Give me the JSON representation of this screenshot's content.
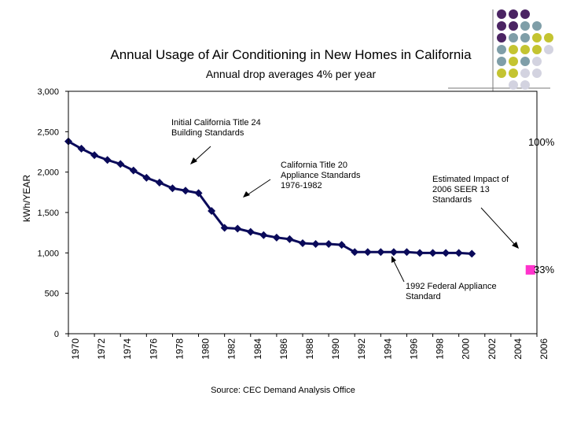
{
  "title": "Annual Usage of Air Conditioning in New Homes in California",
  "subtitle": "Annual drop averages 4% per year",
  "source": "Source: CEC Demand Analysis Office",
  "annotations": {
    "title24": "Initial California Title 24\nBuilding Standards",
    "title20": "California Title 20\nAppliance Standards\n1976-1982",
    "seer": "Estimated Impact of\n2006 SEER 13\nStandards",
    "federal": "1992 Federal Appliance\nStandard",
    "pct100": "100%",
    "pct33": "33%"
  },
  "colors": {
    "series": "#0a0a5a",
    "marker33": "#ff33cc",
    "deco_purple": "#4b2463",
    "deco_teal": "#7f9ea8",
    "deco_olive": "#c4c431",
    "deco_lavender": "#d3d3e0"
  },
  "chart_data": {
    "type": "line",
    "ylabel": "kWh/YEAR",
    "xlabel": "",
    "ylim": [
      0,
      3000
    ],
    "yticks": [
      "0",
      "500",
      "1,000",
      "1,500",
      "2,000",
      "2,500",
      "3,000"
    ],
    "xlim": [
      1970,
      2006
    ],
    "xticks": [
      "1970",
      "1972",
      "1974",
      "1976",
      "1978",
      "1980",
      "1982",
      "1984",
      "1986",
      "1988",
      "1990",
      "1992",
      "1994",
      "1996",
      "1998",
      "2000",
      "2002",
      "2004",
      "2006"
    ],
    "grid": false,
    "series": [
      {
        "x": [
          1970,
          1971,
          1972,
          1973,
          1974,
          1975,
          1976,
          1977,
          1978,
          1979,
          1980,
          1981,
          1982,
          1983,
          1984,
          1985,
          1986,
          1987,
          1988,
          1989,
          1990,
          1991,
          1992,
          1993,
          1994,
          1995,
          1996,
          1997,
          1998,
          1999,
          2000,
          2001
        ],
        "values": [
          2380,
          2290,
          2210,
          2150,
          2100,
          2020,
          1930,
          1870,
          1800,
          1770,
          1740,
          1520,
          1310,
          1300,
          1260,
          1220,
          1190,
          1170,
          1120,
          1110,
          1110,
          1100,
          1010,
          1010,
          1010,
          1010,
          1010,
          1000,
          1000,
          1000,
          1000,
          990
        ]
      }
    ],
    "points": [
      {
        "x": 2005.5,
        "y": 790,
        "label": "33%"
      }
    ]
  }
}
